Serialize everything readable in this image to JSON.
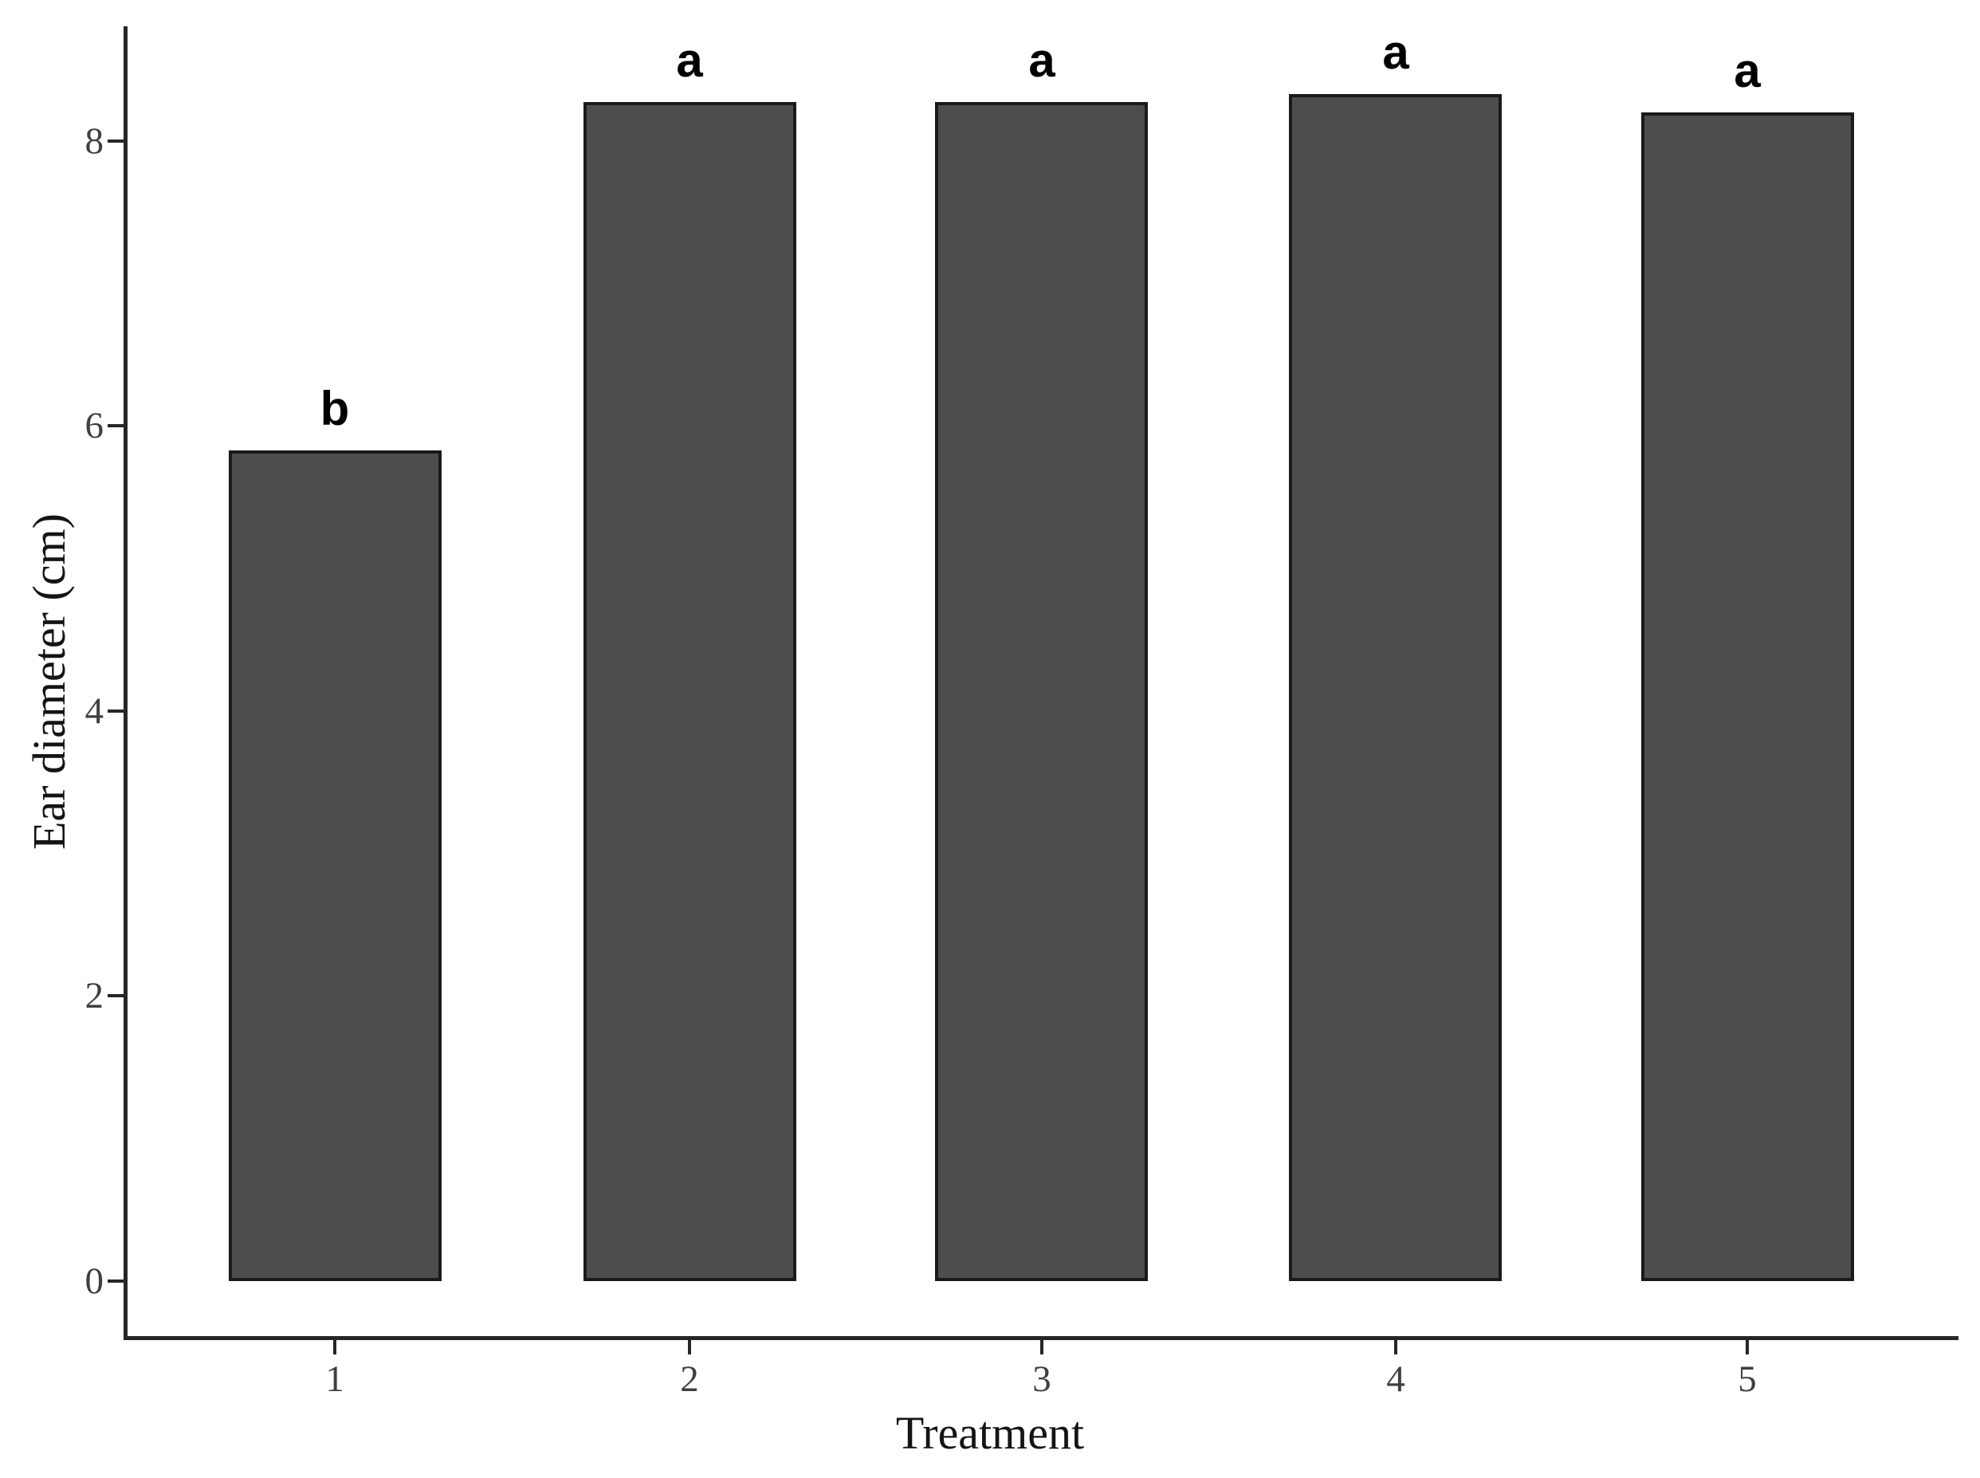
{
  "chart_data": {
    "type": "bar",
    "categories": [
      "1",
      "2",
      "3",
      "4",
      "5"
    ],
    "values": [
      5.83,
      8.27,
      8.27,
      8.33,
      8.2
    ],
    "significance_letters": [
      "b",
      "a",
      "a",
      "a",
      "a"
    ],
    "title": "",
    "xlabel": "Treatment",
    "ylabel": "Ear diameter (cm)",
    "yticks": [
      0,
      2,
      4,
      6,
      8
    ],
    "ylim": [
      0,
      8.8
    ],
    "grid": "off",
    "legend": "none",
    "style": {
      "bar_fill": "#4d4d4d",
      "bar_border": "#1a1a1a",
      "axis_color": "#262626",
      "tick_label_color": "#3f3f3f",
      "letter_color": "#000000",
      "background": "#ffffff"
    }
  }
}
